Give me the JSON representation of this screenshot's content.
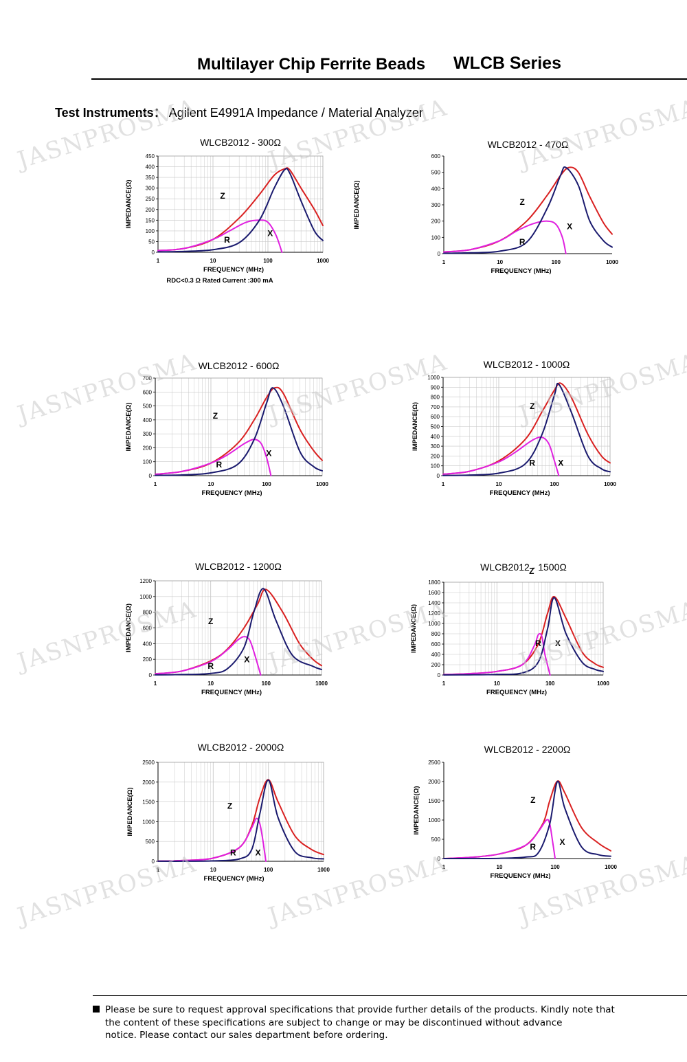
{
  "header": {
    "title": "Multilayer Chip Ferrite Beads",
    "series": "WLCB Series",
    "instruments_label": "Test Instruments：",
    "instruments_value": "Agilent E4991A Impedance / Material Analyzer"
  },
  "watermark": {
    "text": "JASNPROSMA"
  },
  "footer": {
    "line1": "Please be sure to request approval specifications that provide further details of the products.    Kindly note that",
    "line2": "the content of these specifications are subject to change or may be discontinued without advance",
    "line3": "notice.    Please contact our sales department before ordering."
  },
  "colors": {
    "Z": "#d92020",
    "X": "#1a1a6e",
    "R": "#e020e0",
    "grid": "#c8c8c8",
    "axis": "#000000"
  },
  "chart_data": [
    {
      "type": "line",
      "title": "WLCB2012 - 300Ω",
      "xlabel": "FREQUENCY (MHz)",
      "ylabel": "IMPEDANCE(Ω)",
      "note": "RDC<0.3 Ω Rated Current :300 mA",
      "x_scale": "log",
      "xlim": [
        1,
        1000
      ],
      "x_ticks": [
        "1",
        "10",
        "100",
        "1000"
      ],
      "ylim": [
        0,
        450
      ],
      "y_ticks": [
        0,
        50,
        100,
        150,
        200,
        250,
        300,
        350,
        400,
        450
      ],
      "grid": true,
      "series": [
        {
          "name": "Z",
          "x": [
            1,
            3,
            10,
            30,
            70,
            130,
            200,
            250,
            400,
            700,
            1000
          ],
          "y": [
            8,
            18,
            60,
            160,
            270,
            360,
            390,
            385,
            300,
            200,
            125
          ]
        },
        {
          "name": "R",
          "x": [
            1,
            3,
            10,
            20,
            40,
            70,
            100,
            140,
            180
          ],
          "y": [
            8,
            18,
            60,
            100,
            140,
            150,
            140,
            80,
            0
          ]
        },
        {
          "name": "X",
          "x": [
            1,
            3,
            10,
            30,
            70,
            130,
            200,
            250,
            400,
            700,
            1000
          ],
          "y": [
            2,
            4,
            12,
            45,
            150,
            300,
            385,
            370,
            240,
            100,
            55
          ]
        }
      ],
      "labels": [
        {
          "text": "Z",
          "x": 15,
          "y": 250
        },
        {
          "text": "R",
          "x": 18,
          "y": 45
        },
        {
          "text": "X",
          "x": 110,
          "y": 75
        }
      ]
    },
    {
      "type": "line",
      "title": "WLCB2012 - 470Ω",
      "xlabel": "FREQUENCY (MHz)",
      "ylabel": "IMPEDANCE(Ω)",
      "x_scale": "log",
      "xlim": [
        1,
        1000
      ],
      "x_ticks": [
        "1",
        "10",
        "100",
        "1000"
      ],
      "ylim": [
        0,
        600
      ],
      "y_ticks": [
        0,
        100,
        200,
        300,
        400,
        500,
        600
      ],
      "grid": false,
      "series": [
        {
          "name": "Z",
          "x": [
            1,
            3,
            10,
            30,
            70,
            120,
            170,
            250,
            400,
            700,
            1000
          ],
          "y": [
            10,
            25,
            80,
            200,
            360,
            480,
            530,
            500,
            350,
            190,
            120
          ]
        },
        {
          "name": "R",
          "x": [
            1,
            3,
            10,
            20,
            40,
            70,
            100,
            130,
            150
          ],
          "y": [
            10,
            25,
            80,
            140,
            185,
            200,
            180,
            100,
            0
          ]
        },
        {
          "name": "X",
          "x": [
            1,
            3,
            10,
            30,
            70,
            120,
            150,
            250,
            400,
            700,
            1000
          ],
          "y": [
            2,
            5,
            15,
            70,
            280,
            480,
            530,
            420,
            200,
            80,
            40
          ]
        }
      ],
      "labels": [
        {
          "text": "Z",
          "x": 25,
          "y": 300
        },
        {
          "text": "R",
          "x": 25,
          "y": 55
        },
        {
          "text": "X",
          "x": 175,
          "y": 150
        }
      ]
    },
    {
      "type": "line",
      "title": "WLCB2012 - 600Ω",
      "xlabel": "FREQUENCY (MHz)",
      "ylabel": "IMPEDANCE(Ω)",
      "x_scale": "log",
      "xlim": [
        1,
        1000
      ],
      "x_ticks": [
        "1",
        "10",
        "100",
        "1000"
      ],
      "ylim": [
        0,
        700
      ],
      "y_ticks": [
        0,
        100,
        200,
        300,
        400,
        500,
        600,
        700
      ],
      "grid": true,
      "series": [
        {
          "name": "Z",
          "x": [
            1,
            3,
            10,
            30,
            60,
            100,
            140,
            200,
            400,
            700,
            1000
          ],
          "y": [
            10,
            30,
            90,
            230,
            400,
            560,
            630,
            590,
            330,
            180,
            110
          ]
        },
        {
          "name": "R",
          "x": [
            1,
            3,
            10,
            20,
            40,
            60,
            80,
            100,
            120
          ],
          "y": [
            10,
            30,
            90,
            150,
            230,
            260,
            230,
            130,
            0
          ]
        },
        {
          "name": "X",
          "x": [
            1,
            3,
            10,
            30,
            60,
            100,
            130,
            200,
            400,
            700,
            1000
          ],
          "y": [
            2,
            5,
            20,
            80,
            260,
            520,
            630,
            500,
            170,
            65,
            35
          ]
        }
      ],
      "labels": [
        {
          "text": "Z",
          "x": 12,
          "y": 410
        },
        {
          "text": "R",
          "x": 14,
          "y": 60
        },
        {
          "text": "X",
          "x": 110,
          "y": 140
        }
      ]
    },
    {
      "type": "line",
      "title": "WLCB2012 - 1000Ω",
      "xlabel": "FREQUENCY (MHz)",
      "ylabel": "IMPEDANCE(Ω)",
      "x_scale": "log",
      "xlim": [
        1,
        1000
      ],
      "x_ticks": [
        "1",
        "10",
        "100",
        "1000"
      ],
      "ylim": [
        0,
        1000
      ],
      "y_ticks": [
        0,
        100,
        200,
        300,
        400,
        500,
        600,
        700,
        800,
        900,
        1000
      ],
      "grid": true,
      "series": [
        {
          "name": "Z",
          "x": [
            1,
            3,
            10,
            30,
            60,
            100,
            130,
            200,
            400,
            700,
            1000
          ],
          "y": [
            15,
            45,
            150,
            370,
            650,
            870,
            940,
            800,
            420,
            200,
            130
          ]
        },
        {
          "name": "R",
          "x": [
            1,
            3,
            10,
            20,
            40,
            60,
            80,
            100,
            120
          ],
          "y": [
            15,
            45,
            140,
            240,
            360,
            390,
            320,
            150,
            0
          ]
        },
        {
          "name": "X",
          "x": [
            1,
            3,
            10,
            30,
            60,
            100,
            120,
            200,
            400,
            700,
            1000
          ],
          "y": [
            2,
            6,
            25,
            120,
            420,
            820,
            930,
            650,
            200,
            70,
            40
          ]
        }
      ],
      "labels": [
        {
          "text": "Z",
          "x": 40,
          "y": 680
        },
        {
          "text": "R",
          "x": 40,
          "y": 100
        },
        {
          "text": "X",
          "x": 130,
          "y": 100
        }
      ]
    },
    {
      "type": "line",
      "title": "WLCB2012 - 1200Ω",
      "xlabel": "FREQUENCY (MHz)",
      "ylabel": "IMPEDANCE(Ω)",
      "x_scale": "log",
      "xlim": [
        1,
        1000
      ],
      "x_ticks": [
        "1",
        "10",
        "100",
        "1000"
      ],
      "ylim": [
        0,
        1200
      ],
      "y_ticks": [
        0,
        200,
        400,
        600,
        800,
        1000,
        1200
      ],
      "grid": true,
      "series": [
        {
          "name": "Z",
          "x": [
            1,
            3,
            10,
            20,
            40,
            70,
            100,
            200,
            400,
            700,
            1000
          ],
          "y": [
            15,
            50,
            180,
            330,
            600,
            900,
            1090,
            800,
            400,
            200,
            120
          ]
        },
        {
          "name": "R",
          "x": [
            1,
            3,
            10,
            20,
            30,
            40,
            50,
            60,
            80
          ],
          "y": [
            15,
            50,
            170,
            320,
            440,
            490,
            450,
            300,
            0
          ]
        },
        {
          "name": "X",
          "x": [
            1,
            3,
            10,
            20,
            40,
            60,
            90,
            150,
            300,
            700,
            1000
          ],
          "y": [
            2,
            6,
            20,
            80,
            350,
            800,
            1100,
            700,
            250,
            110,
            70
          ]
        }
      ],
      "labels": [
        {
          "text": "Z",
          "x": 10,
          "y": 650
        },
        {
          "text": "R",
          "x": 10,
          "y": 80
        },
        {
          "text": "X",
          "x": 45,
          "y": 160
        }
      ]
    },
    {
      "type": "line",
      "title": "WLCB2012 - 1500Ω",
      "xlabel": "FREQUENCY (MHz)",
      "ylabel": "IMPEDANCE(Ω)",
      "x_scale": "log",
      "xlim": [
        1,
        1000
      ],
      "x_ticks": [
        "1",
        "10",
        "100",
        "1000"
      ],
      "ylim": [
        0,
        1800
      ],
      "y_ticks": [
        0,
        200,
        400,
        600,
        800,
        1000,
        1200,
        1400,
        1600,
        1800
      ],
      "grid": true,
      "series": [
        {
          "name": "Z",
          "x": [
            1,
            3,
            10,
            30,
            60,
            90,
            120,
            200,
            400,
            700,
            1000
          ],
          "y": [
            10,
            25,
            70,
            200,
            600,
            1200,
            1520,
            1100,
            450,
            220,
            150
          ]
        },
        {
          "name": "R",
          "x": [
            1,
            3,
            10,
            30,
            50,
            60,
            70,
            80,
            100
          ],
          "y": [
            10,
            25,
            70,
            200,
            560,
            780,
            750,
            400,
            0
          ]
        },
        {
          "name": "X",
          "x": [
            1,
            3,
            10,
            30,
            60,
            90,
            120,
            200,
            400,
            700,
            1000
          ],
          "y": [
            2,
            4,
            12,
            40,
            250,
            900,
            1500,
            800,
            250,
            110,
            70
          ]
        }
      ],
      "labels": [
        {
          "text": "Z",
          "x": 45,
          "y": 1960
        },
        {
          "text": "R",
          "x": 60,
          "y": 560
        },
        {
          "text": "X",
          "x": 140,
          "y": 560
        }
      ]
    },
    {
      "type": "line",
      "title": "WLCB2012 - 2000Ω",
      "xlabel": "FREQUENCY (MHz)",
      "ylabel": "IMPEDANCE(Ω)",
      "x_scale": "log",
      "xlim": [
        1,
        1000
      ],
      "x_ticks": [
        "1",
        "10",
        "100",
        "1000"
      ],
      "ylim": [
        0,
        2500
      ],
      "y_ticks": [
        0,
        500,
        1000,
        1500,
        2000,
        2500
      ],
      "grid": true,
      "series": [
        {
          "name": "Z",
          "x": [
            1,
            3,
            10,
            30,
            50,
            70,
            100,
            150,
            300,
            600,
            1000
          ],
          "y": [
            5,
            20,
            80,
            350,
            900,
            1600,
            2060,
            1500,
            650,
            300,
            170
          ]
        },
        {
          "name": "R",
          "x": [
            1,
            3,
            10,
            30,
            50,
            60,
            70,
            80,
            90
          ],
          "y": [
            5,
            20,
            80,
            350,
            850,
            1080,
            950,
            500,
            0
          ]
        },
        {
          "name": "X",
          "x": [
            1,
            3,
            10,
            30,
            50,
            70,
            100,
            150,
            300,
            600,
            1000
          ],
          "y": [
            1,
            2,
            10,
            60,
            300,
            1200,
            2050,
            1100,
            250,
            90,
            60
          ]
        }
      ],
      "labels": [
        {
          "text": "Z",
          "x": 20,
          "y": 1330
        },
        {
          "text": "R",
          "x": 23,
          "y": 150
        },
        {
          "text": "X",
          "x": 65,
          "y": 150
        }
      ]
    },
    {
      "type": "line",
      "title": "WLCB2012 - 2200Ω",
      "xlabel": "FREQUENCY (MHz)",
      "ylabel": "IMPEDANCE(Ω)",
      "x_scale": "log",
      "xlim": [
        1,
        1000
      ],
      "x_ticks": [
        "1",
        "10",
        "100",
        "1000"
      ],
      "ylim": [
        0,
        2500
      ],
      "y_ticks": [
        0,
        500,
        1000,
        1500,
        2000,
        2500
      ],
      "grid": false,
      "series": [
        {
          "name": "Z",
          "x": [
            1,
            3,
            10,
            30,
            60,
            80,
            110,
            150,
            300,
            600,
            1000
          ],
          "y": [
            0,
            30,
            120,
            350,
            900,
            1500,
            2010,
            1700,
            800,
            400,
            200
          ]
        },
        {
          "name": "R",
          "x": [
            1,
            3,
            10,
            30,
            50,
            70,
            80,
            90,
            100
          ],
          "y": [
            0,
            30,
            120,
            350,
            700,
            1000,
            900,
            450,
            0
          ]
        },
        {
          "name": "X",
          "x": [
            1,
            3,
            10,
            30,
            50,
            80,
            110,
            150,
            300,
            600,
            1000
          ],
          "y": [
            0,
            1,
            5,
            40,
            150,
            900,
            2000,
            1300,
            300,
            100,
            60
          ]
        }
      ],
      "labels": [
        {
          "text": "Z",
          "x": 40,
          "y": 1450
        },
        {
          "text": "R",
          "x": 40,
          "y": 230
        },
        {
          "text": "X",
          "x": 135,
          "y": 360
        }
      ]
    }
  ]
}
